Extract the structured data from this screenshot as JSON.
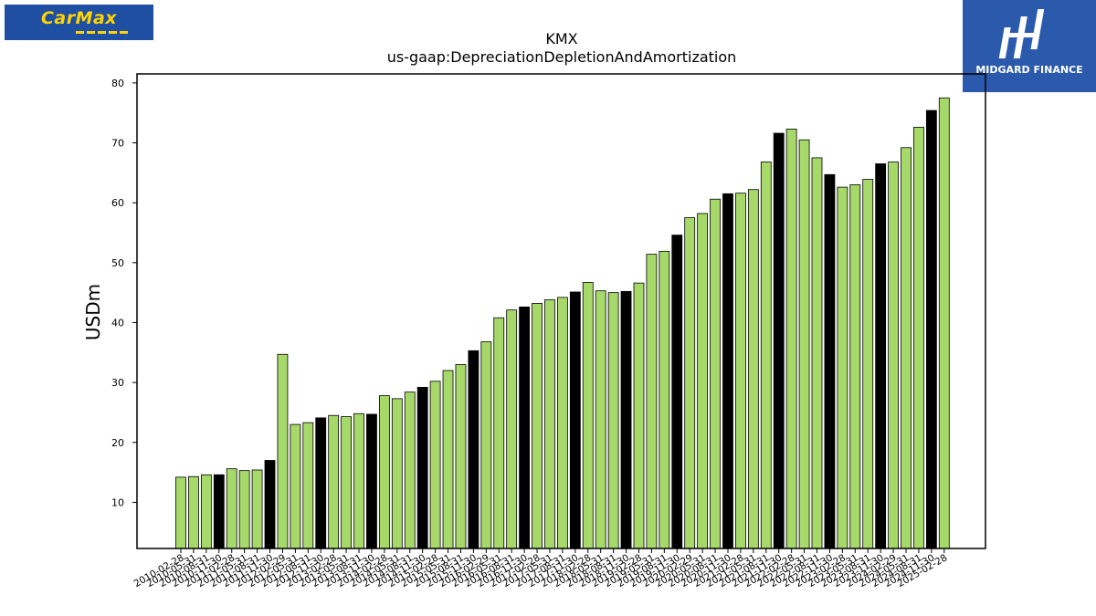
{
  "logos": {
    "left": {
      "text": "CarMax",
      "colors": {
        "background": "#1f4fa3",
        "text": "#ffd400"
      }
    },
    "right": {
      "text": "MIDGARD FINANCE",
      "colors": {
        "background": "#2b5aad",
        "text": "#ffffff"
      }
    }
  },
  "chart_data": {
    "type": "bar",
    "title": "KMX",
    "subtitle": "us-gaap:DepreciationDepletionAndAmortization",
    "ylabel": "USDm",
    "xlabel": "",
    "ylim": [
      2.3,
      81.5
    ],
    "yticks": [
      10,
      20,
      30,
      40,
      50,
      60,
      70,
      80
    ],
    "grid": false,
    "legend": "none",
    "colors": {
      "quarter": "#a6d96a",
      "fiscal_year_end": "#000000",
      "edge": "#000000"
    },
    "categories": [
      "2010-02-28",
      "2010-05-31",
      "2010-08-31",
      "2010-11-30",
      "2011-02-28",
      "2011-05-31",
      "2011-08-31",
      "2011-11-30",
      "2012-02-29",
      "2012-05-31",
      "2012-08-31",
      "2012-11-30",
      "2013-02-28",
      "2013-05-31",
      "2013-08-31",
      "2013-11-30",
      "2014-02-28",
      "2014-05-31",
      "2014-08-31",
      "2014-11-30",
      "2015-02-28",
      "2015-05-31",
      "2015-08-31",
      "2015-11-30",
      "2016-02-29",
      "2016-05-31",
      "2016-08-31",
      "2016-11-30",
      "2017-02-28",
      "2017-05-31",
      "2017-08-31",
      "2017-11-30",
      "2018-02-28",
      "2018-05-31",
      "2018-08-31",
      "2018-11-30",
      "2019-02-28",
      "2019-05-31",
      "2019-08-31",
      "2019-11-30",
      "2020-02-29",
      "2020-05-31",
      "2020-08-31",
      "2020-11-30",
      "2021-02-28",
      "2021-05-31",
      "2021-08-31",
      "2021-11-30",
      "2022-02-28",
      "2022-05-31",
      "2022-08-31",
      "2022-11-30",
      "2023-02-28",
      "2023-05-31",
      "2023-08-31",
      "2023-11-30",
      "2024-02-29",
      "2024-05-31",
      "2024-08-31",
      "2024-11-30",
      "2025-02-28"
    ],
    "values": [
      14.2,
      14.3,
      14.6,
      14.6,
      15.6,
      15.3,
      15.4,
      17.0,
      34.7,
      23.0,
      23.3,
      24.1,
      24.5,
      24.3,
      24.8,
      24.7,
      27.8,
      27.3,
      28.4,
      29.2,
      30.2,
      32.0,
      33.0,
      35.3,
      36.8,
      40.8,
      42.1,
      42.6,
      43.2,
      43.8,
      44.2,
      45.1,
      46.7,
      45.3,
      45.0,
      45.2,
      46.6,
      51.4,
      51.9,
      54.6,
      57.5,
      58.2,
      60.6,
      61.5,
      61.6,
      62.2,
      66.8,
      71.6,
      72.3,
      70.5,
      67.5,
      64.7,
      62.6,
      63.0,
      63.9,
      66.5,
      66.8,
      69.2,
      72.6,
      75.4,
      77.5
    ],
    "fiscal_year_end": [
      false,
      false,
      false,
      true,
      false,
      false,
      false,
      true,
      false,
      false,
      false,
      true,
      false,
      false,
      false,
      true,
      false,
      false,
      false,
      true,
      false,
      false,
      false,
      true,
      false,
      false,
      false,
      true,
      false,
      false,
      false,
      true,
      false,
      false,
      false,
      true,
      false,
      false,
      false,
      true,
      false,
      false,
      false,
      true,
      false,
      false,
      false,
      true,
      false,
      false,
      false,
      true,
      false,
      false,
      false,
      true,
      false,
      false,
      false,
      true,
      false
    ]
  }
}
